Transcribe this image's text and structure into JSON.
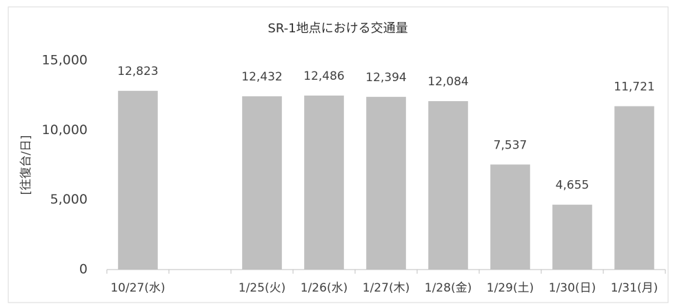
{
  "chart_data": {
    "type": "bar",
    "title": "SR-1地点における交通量",
    "y_label": "[往復台/日]",
    "categories": [
      "10/27(水)",
      null,
      "1/25(火)",
      "1/26(水)",
      "1/27(木)",
      "1/28(金)",
      "1/29(土)",
      "1/30(日)",
      "1/31(月)"
    ],
    "values": [
      12823,
      null,
      12432,
      12486,
      12394,
      12084,
      7537,
      4655,
      11721
    ],
    "value_labels": [
      "12,823",
      null,
      "12,432",
      "12,486",
      "12,394",
      "12,084",
      "7,537",
      "4,655",
      "11,721"
    ],
    "color": "#bfbfbf",
    "ylim": [
      0,
      15000
    ],
    "yticks": [
      0,
      {
        "value": 5000,
        "label": "5,000"
      },
      {
        "value": 10000,
        "label": "10,000"
      },
      {
        "value": 15000,
        "label": "15,000"
      }
    ],
    "grid": false
  }
}
